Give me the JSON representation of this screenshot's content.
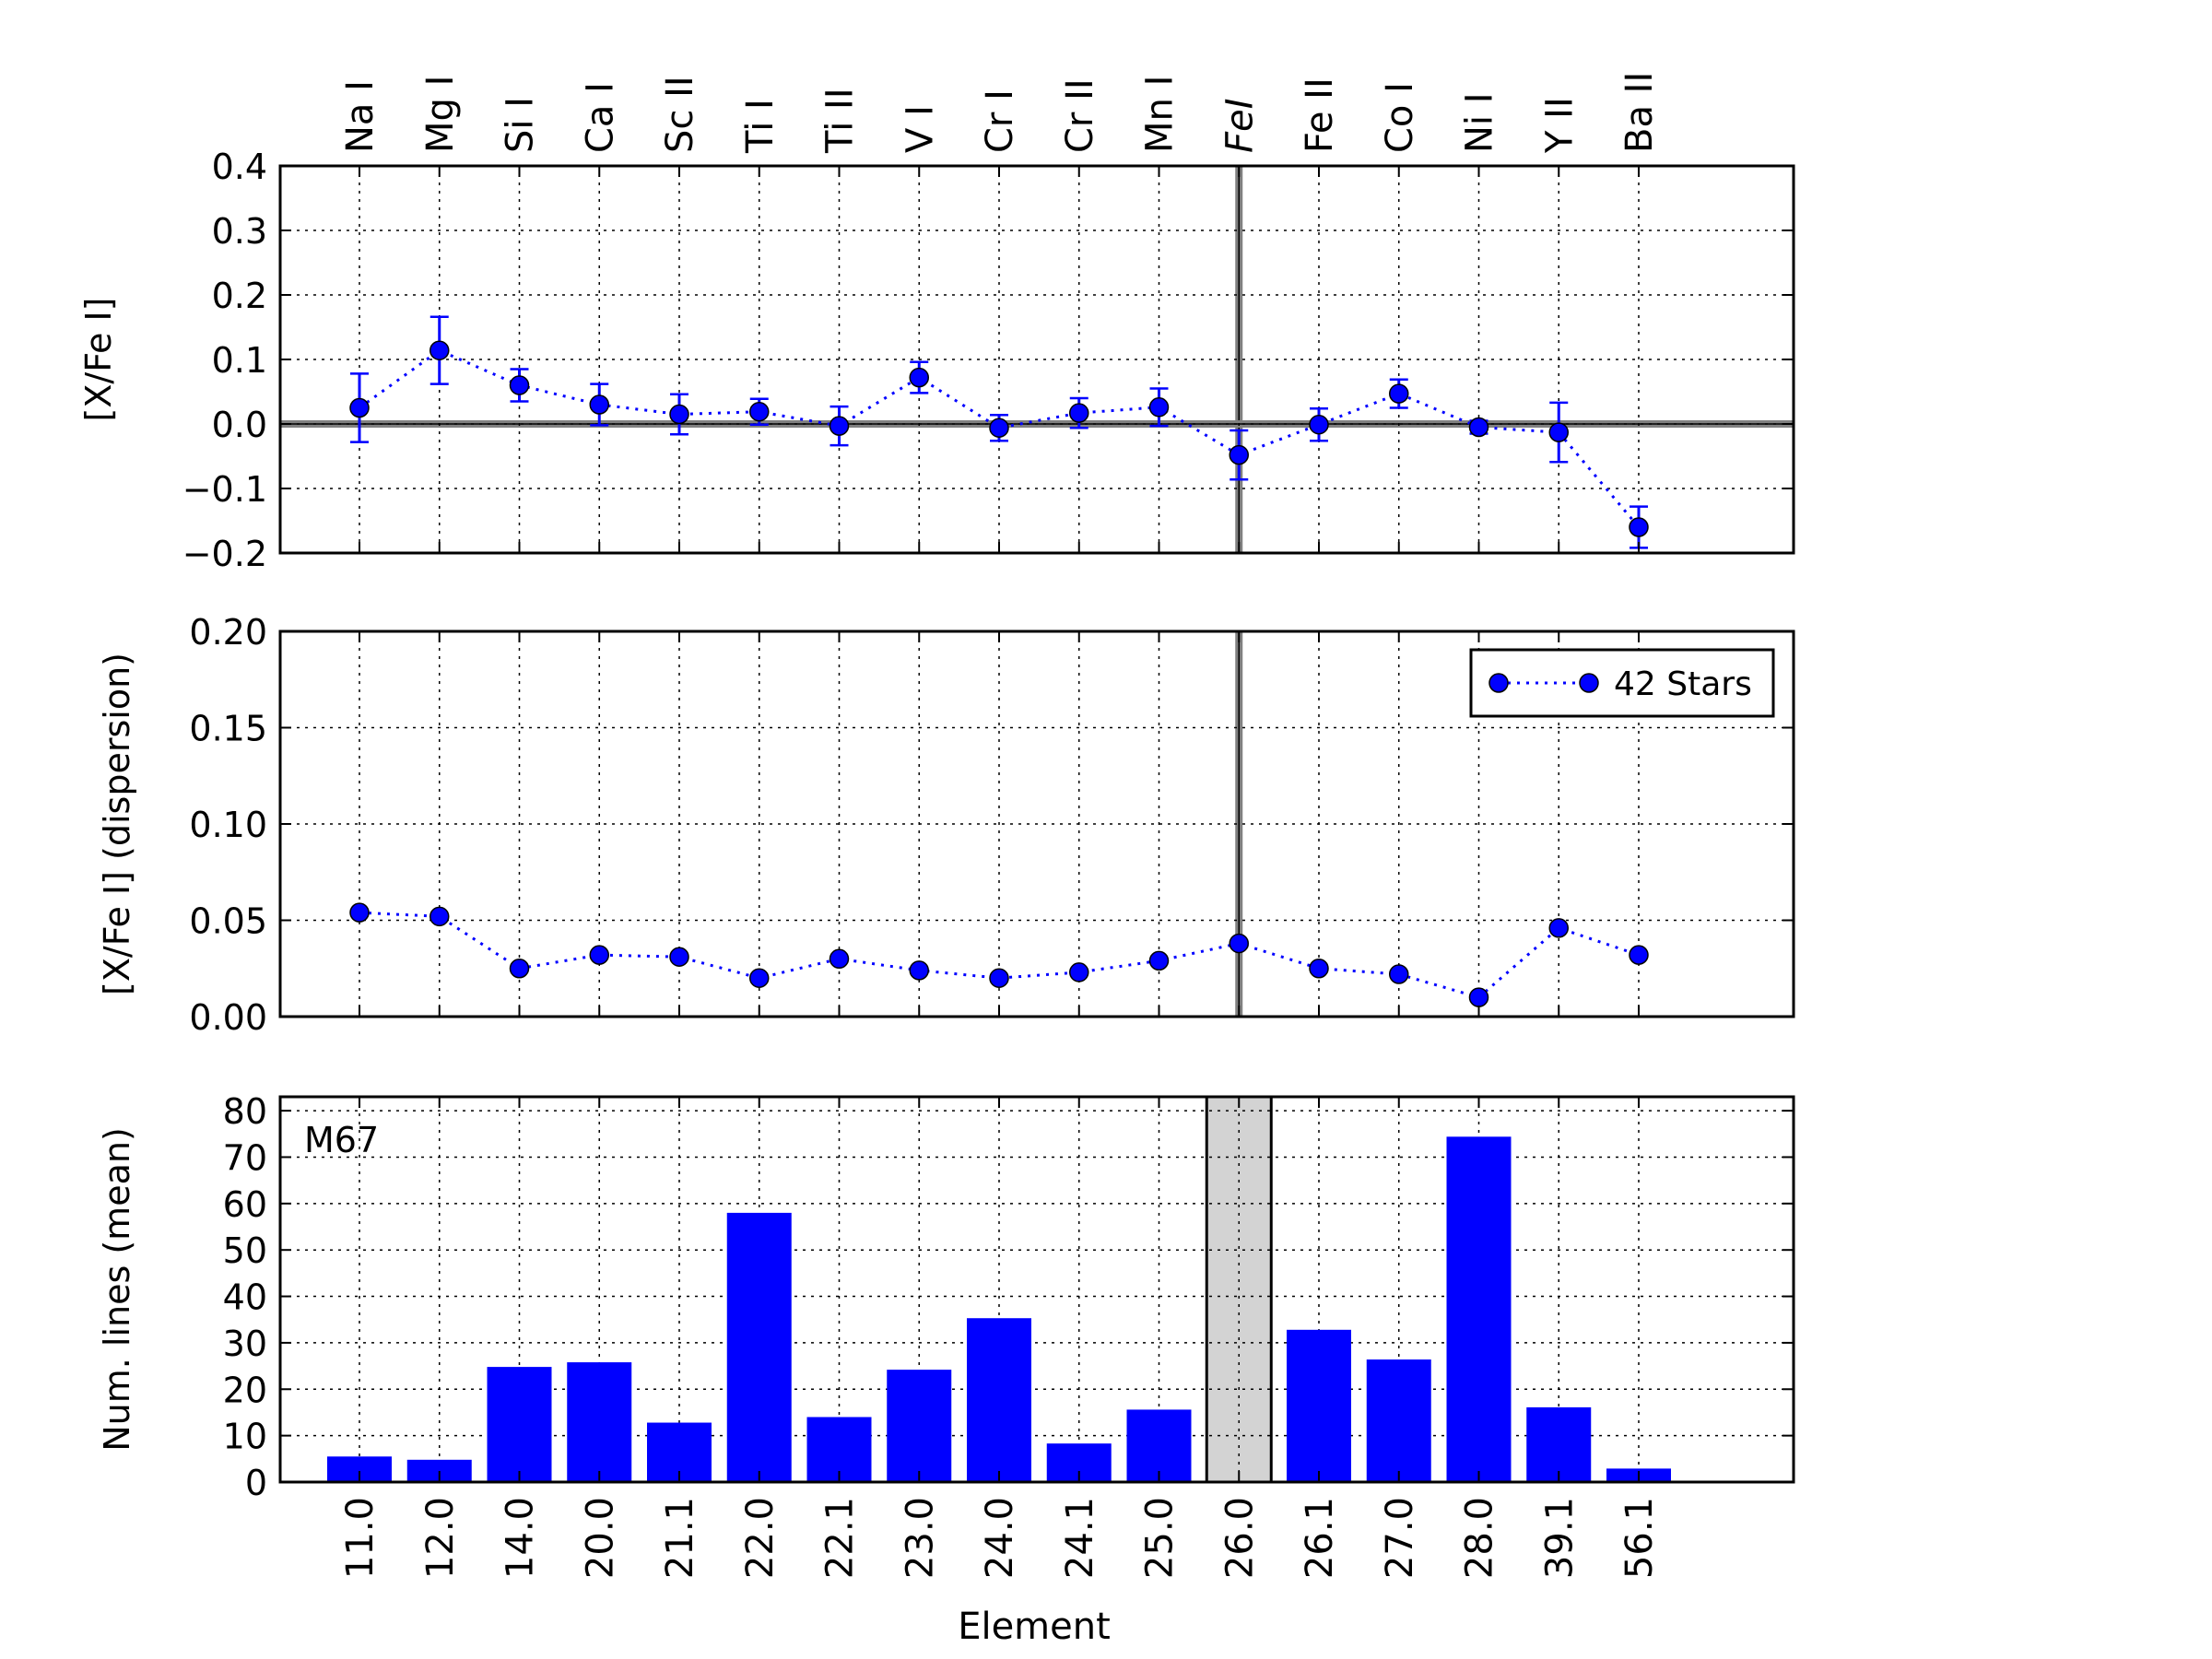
{
  "chart_data": {
    "type": "scatter",
    "top_labels": [
      "Na I",
      "Mg I",
      "Si I",
      "Ca I",
      "Sc II",
      "Ti I",
      "Ti II",
      "V I",
      "Cr I",
      "Cr II",
      "Mn I",
      "FeI",
      "Fe II",
      "Co I",
      "Ni I",
      "Y II",
      "Ba II"
    ],
    "categories": [
      "11.0",
      "12.0",
      "14.0",
      "20.0",
      "21.1",
      "22.0",
      "22.1",
      "23.0",
      "24.0",
      "24.1",
      "25.0",
      "26.0",
      "26.1",
      "27.0",
      "28.0",
      "39.1",
      "56.1"
    ],
    "highlight_index": 11,
    "xlabel": "Element",
    "panels": [
      {
        "type": "scatter",
        "ylabel": "[X/Fe I]",
        "ylim": [
          -0.2,
          0.4
        ],
        "yticks": [
          "−0.2",
          "−0.1",
          "0.0",
          "0.1",
          "0.2",
          "0.3",
          "0.4"
        ],
        "ytick_values": [
          -0.2,
          -0.1,
          0.0,
          0.1,
          0.2,
          0.3,
          0.4
        ],
        "reference_line": 0.0,
        "series": [
          {
            "values": [
              0.025,
              0.114,
              0.06,
              0.03,
              0.015,
              0.019,
              -0.003,
              0.072,
              -0.006,
              0.017,
              0.026,
              -0.048,
              -0.001,
              0.047,
              -0.005,
              -0.013,
              -0.16
            ],
            "errors": [
              0.053,
              0.052,
              0.025,
              0.032,
              0.031,
              0.02,
              0.03,
              0.024,
              0.02,
              0.023,
              0.029,
              0.038,
              0.025,
              0.022,
              0.01,
              0.046,
              0.032
            ]
          }
        ],
        "grid": true
      },
      {
        "type": "scatter",
        "ylabel": "[X/Fe I] (dispersion)",
        "ylim": [
          0.0,
          0.2
        ],
        "yticks": [
          "0.00",
          "0.05",
          "0.10",
          "0.15",
          "0.20"
        ],
        "ytick_values": [
          0.0,
          0.05,
          0.1,
          0.15,
          0.2
        ],
        "series": [
          {
            "name": "42 Stars",
            "values": [
              0.054,
              0.052,
              0.025,
              0.032,
              0.031,
              0.02,
              0.03,
              0.024,
              0.02,
              0.023,
              0.029,
              0.038,
              0.025,
              0.022,
              0.01,
              0.046,
              0.032
            ]
          }
        ],
        "legend": "top-right",
        "grid": true
      },
      {
        "type": "bar",
        "ylabel": "Num. lines (mean)",
        "ylim": [
          0,
          83
        ],
        "yticks": [
          "0",
          "10",
          "20",
          "30",
          "40",
          "50",
          "60",
          "70",
          "80"
        ],
        "ytick_values": [
          0,
          10,
          20,
          30,
          40,
          50,
          60,
          70,
          80
        ],
        "values": [
          5.5,
          4.8,
          24.8,
          25.8,
          12.8,
          58.0,
          14.0,
          24.2,
          35.3,
          8.3,
          15.6,
          0,
          32.8,
          26.4,
          74.4,
          16.1,
          2.9
        ],
        "annotation": "M67",
        "grid": true
      }
    ],
    "colors": {
      "marker": "#0000ff",
      "bar": "#0000ff",
      "highlight_band": "#d3d3d3",
      "reference_line": "#808080"
    }
  }
}
